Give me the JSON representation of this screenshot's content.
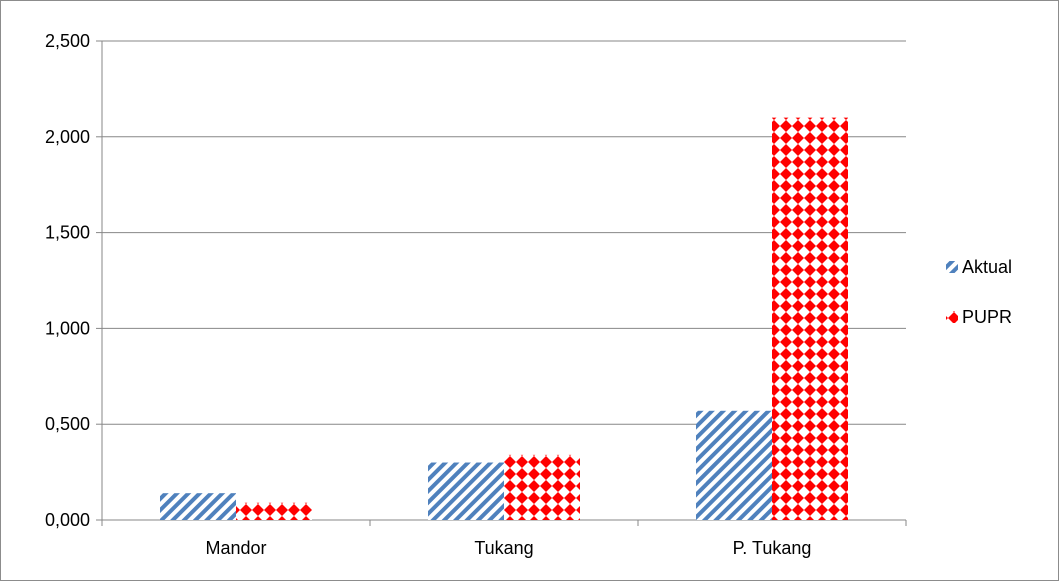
{
  "chart_data": {
    "type": "bar",
    "categories": [
      "Mandor",
      "Tukang",
      "P. Tukang"
    ],
    "series": [
      {
        "name": "Aktual",
        "values": [
          0.14,
          0.3,
          0.57
        ],
        "color": "#4f81bd",
        "pattern": "diagonal-stripes"
      },
      {
        "name": "PUPR",
        "values": [
          0.09,
          0.34,
          2.1
        ],
        "color": "#ff0000",
        "pattern": "diamond-grid"
      }
    ],
    "ylim": [
      0,
      2.5
    ],
    "yticks": [
      0,
      0.5,
      1.0,
      1.5,
      2.0,
      2.5
    ],
    "ytick_labels": [
      "0,000",
      "0,500",
      "1,000",
      "1,500",
      "2,000",
      "2,500"
    ],
    "grid": true,
    "legend": "right"
  }
}
